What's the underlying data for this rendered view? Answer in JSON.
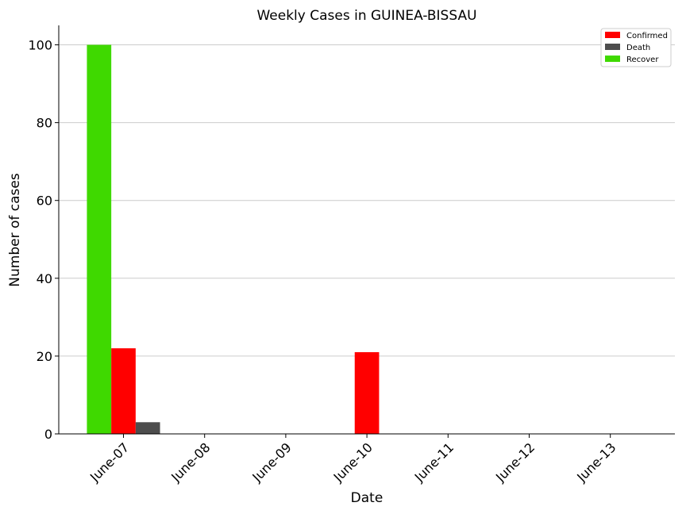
{
  "chart_data": {
    "type": "bar",
    "title": "Weekly Cases in GUINEA-BISSAU",
    "xlabel": "Date",
    "ylabel": "Number of cases",
    "categories": [
      "June-07",
      "June-08",
      "June-09",
      "June-10",
      "June-11",
      "June-12",
      "June-13"
    ],
    "series": [
      {
        "name": "Recover",
        "color": "#3fd900",
        "values": [
          100,
          0,
          0,
          0,
          0,
          0,
          0
        ]
      },
      {
        "name": "Confirmed",
        "color": "#ff0000",
        "values": [
          22,
          0,
          0,
          21,
          0,
          0,
          0
        ]
      },
      {
        "name": "Death",
        "color": "#4d4d4d",
        "values": [
          3,
          0,
          0,
          0,
          0,
          0,
          0
        ]
      }
    ],
    "legend_order": [
      "Confirmed",
      "Death",
      "Recover"
    ],
    "ylim": [
      0,
      105
    ],
    "yticks": [
      0,
      20,
      40,
      60,
      80,
      100
    ],
    "grid": "horizontal",
    "legend_position": "top-right"
  }
}
